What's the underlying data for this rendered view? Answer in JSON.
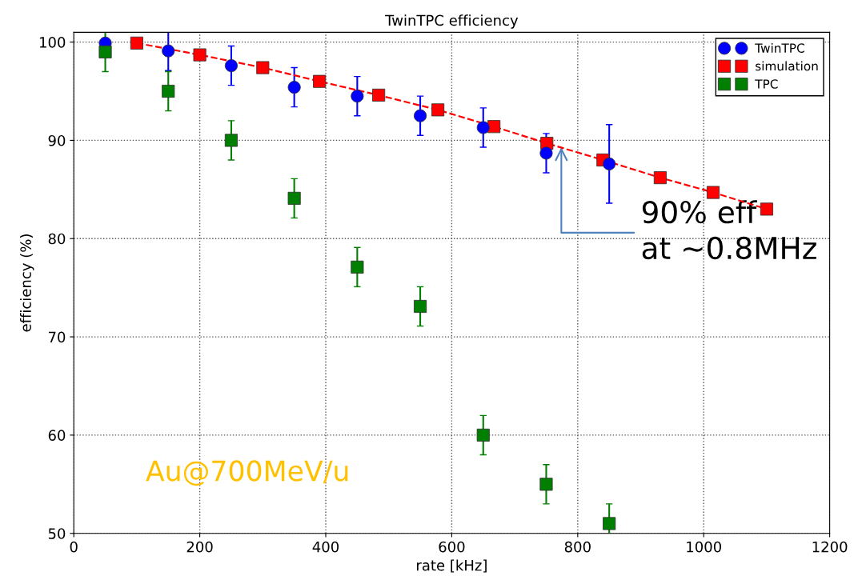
{
  "chart_data": {
    "type": "scatter",
    "title": "TwinTPC efficiency",
    "xlabel": "rate [kHz]",
    "ylabel": "efficiency (%)",
    "xlim": [
      0,
      1200
    ],
    "ylim": [
      50,
      101
    ],
    "xticks": [
      0,
      200,
      400,
      600,
      800,
      1000,
      1200
    ],
    "yticks": [
      50,
      60,
      70,
      80,
      90,
      100
    ],
    "grid": true,
    "legend": "top right",
    "series": [
      {
        "name": "TwinTPC",
        "marker": "circle",
        "color": "#0000ff",
        "x": [
          50,
          150,
          250,
          350,
          450,
          550,
          650,
          750,
          850
        ],
        "values": [
          99.9,
          99.1,
          97.6,
          95.4,
          94.5,
          92.5,
          91.3,
          88.7,
          87.6
        ],
        "errors": [
          null,
          2,
          2,
          2,
          2,
          2,
          2,
          2,
          4
        ]
      },
      {
        "name": "simulation",
        "type": "line",
        "marker": "square",
        "line_style": "dashed",
        "color": "#ff0000",
        "x": [
          100,
          200,
          300,
          390,
          484,
          578,
          667,
          751,
          840,
          931,
          1015,
          1100
        ],
        "values": [
          99.9,
          98.7,
          97.4,
          96.0,
          94.6,
          93.1,
          91.4,
          89.7,
          88.0,
          86.2,
          84.7,
          83.0
        ]
      },
      {
        "name": "TPC",
        "marker": "square",
        "color": "#007f00",
        "x": [
          50,
          150,
          250,
          350,
          450,
          550,
          650,
          750,
          850
        ],
        "values": [
          99.0,
          95.0,
          90.0,
          84.1,
          77.1,
          73.1,
          60.0,
          55.0,
          51.0
        ],
        "errors": [
          2,
          2,
          2,
          2,
          2,
          2,
          2,
          2,
          2
        ]
      }
    ],
    "annotations": [
      {
        "text": "90% eff\nat ~0.8MHz",
        "x": 774,
        "y": 89.3
      },
      "Au@700MeV/u"
    ]
  }
}
